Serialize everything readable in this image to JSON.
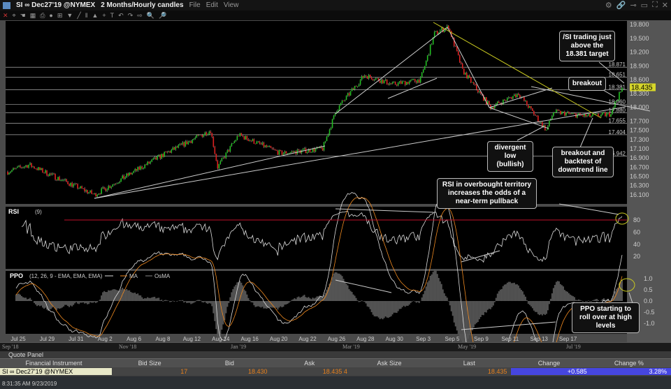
{
  "window": {
    "symbol": "SI ∞ Dec27'19 @NYMEX",
    "period": "2 Months/Hourly candles",
    "menu": [
      "File",
      "Edit",
      "View"
    ],
    "controls": [
      "gear",
      "link",
      "pin",
      "minimize",
      "maximize",
      "close"
    ]
  },
  "price_axis": {
    "ticks": [
      "19.800",
      "19.500",
      "19.200",
      "18.900",
      "18.600",
      "18.300",
      "18.000",
      "17.700",
      "17.500",
      "17.300",
      "17.100",
      "16.900",
      "16.700",
      "16.500",
      "16.300",
      "16.100"
    ],
    "last": "18.435"
  },
  "levels": [
    "18.871",
    "18.651",
    "18.381",
    "18.060",
    "17.880",
    "17.655",
    "17.404",
    "16.942"
  ],
  "rsi": {
    "label": "RSI",
    "params": "(9)",
    "ticks": [
      "80",
      "60",
      "40",
      "20"
    ],
    "overbought": 80
  },
  "ppo": {
    "label": "PPO",
    "params": "(12, 26, 9 - EMA, EMA, EMA)",
    "legend": [
      "MA",
      "OsMA"
    ],
    "ticks": [
      "1.0",
      "0.5",
      "0.0",
      "-0.5",
      "-1.0"
    ]
  },
  "dates": [
    "Jul 25",
    "Jul 29",
    "Jul 31",
    "Aug 2",
    "Aug 6",
    "Aug 8",
    "Aug 12",
    "Aug 14",
    "Aug 16",
    "Aug 20",
    "Aug 22",
    "Aug 26",
    "Aug 28",
    "Aug 30",
    "Sep 3",
    "Sep 5",
    "Sep 9",
    "Sep 11",
    "Sep 13",
    "Sep 17"
  ],
  "navigator": [
    "Sep '18",
    "Nov '18",
    "Jan '19",
    "Mar '19",
    "May '19",
    "Jul '19"
  ],
  "annotations": {
    "target": "/SI trading just above the 18.381 target",
    "breakout": "breakout",
    "divergent": "divergent low (bullish)",
    "backtest": "breakout and backtest of downtrend line",
    "rsi_note": "RSI in overbought territory increases the odds of a near-term pullback",
    "ppo_note": "PPO starting to roll over at high levels"
  },
  "quote_panel": {
    "title": "Quote Panel",
    "columns": [
      "Financial Instrument",
      "Bid Size",
      "Bid",
      "Ask",
      "Ask Size",
      "Last",
      "Change",
      "Change %"
    ],
    "row": {
      "instrument": "SI ∞ Dec27'19 @NYMEX",
      "bid_size": "17",
      "bid": "18.430",
      "ask": "18.435 4",
      "ask_size": "",
      "last": "18.435",
      "change": "+0.585",
      "change_pct": "3.28%"
    }
  },
  "status": "8:31:35 AM 9/23/2019",
  "colors": {
    "up": "#22c022",
    "down": "#e02020",
    "rsi_line": "#ff1030",
    "ma": "#f08a20",
    "change_bg": "#4646e0"
  },
  "chart_data": {
    "type": "candlestick",
    "bars": 440,
    "waypoints": [
      [
        0,
        16.6
      ],
      [
        15,
        16.75
      ],
      [
        62,
        16.1
      ],
      [
        110,
        16.95
      ],
      [
        145,
        17.5
      ],
      [
        150,
        16.7
      ],
      [
        165,
        17.4
      ],
      [
        195,
        17.0
      ],
      [
        225,
        17.1
      ],
      [
        235,
        17.95
      ],
      [
        255,
        18.7
      ],
      [
        275,
        18.5
      ],
      [
        295,
        18.6
      ],
      [
        305,
        19.6
      ],
      [
        315,
        19.75
      ],
      [
        325,
        18.8
      ],
      [
        345,
        18.0
      ],
      [
        365,
        18.3
      ],
      [
        385,
        17.5
      ],
      [
        390,
        17.9
      ],
      [
        415,
        17.8
      ],
      [
        430,
        17.85
      ],
      [
        440,
        18.45
      ]
    ],
    "ylim": [
      16.0,
      19.9
    ]
  }
}
